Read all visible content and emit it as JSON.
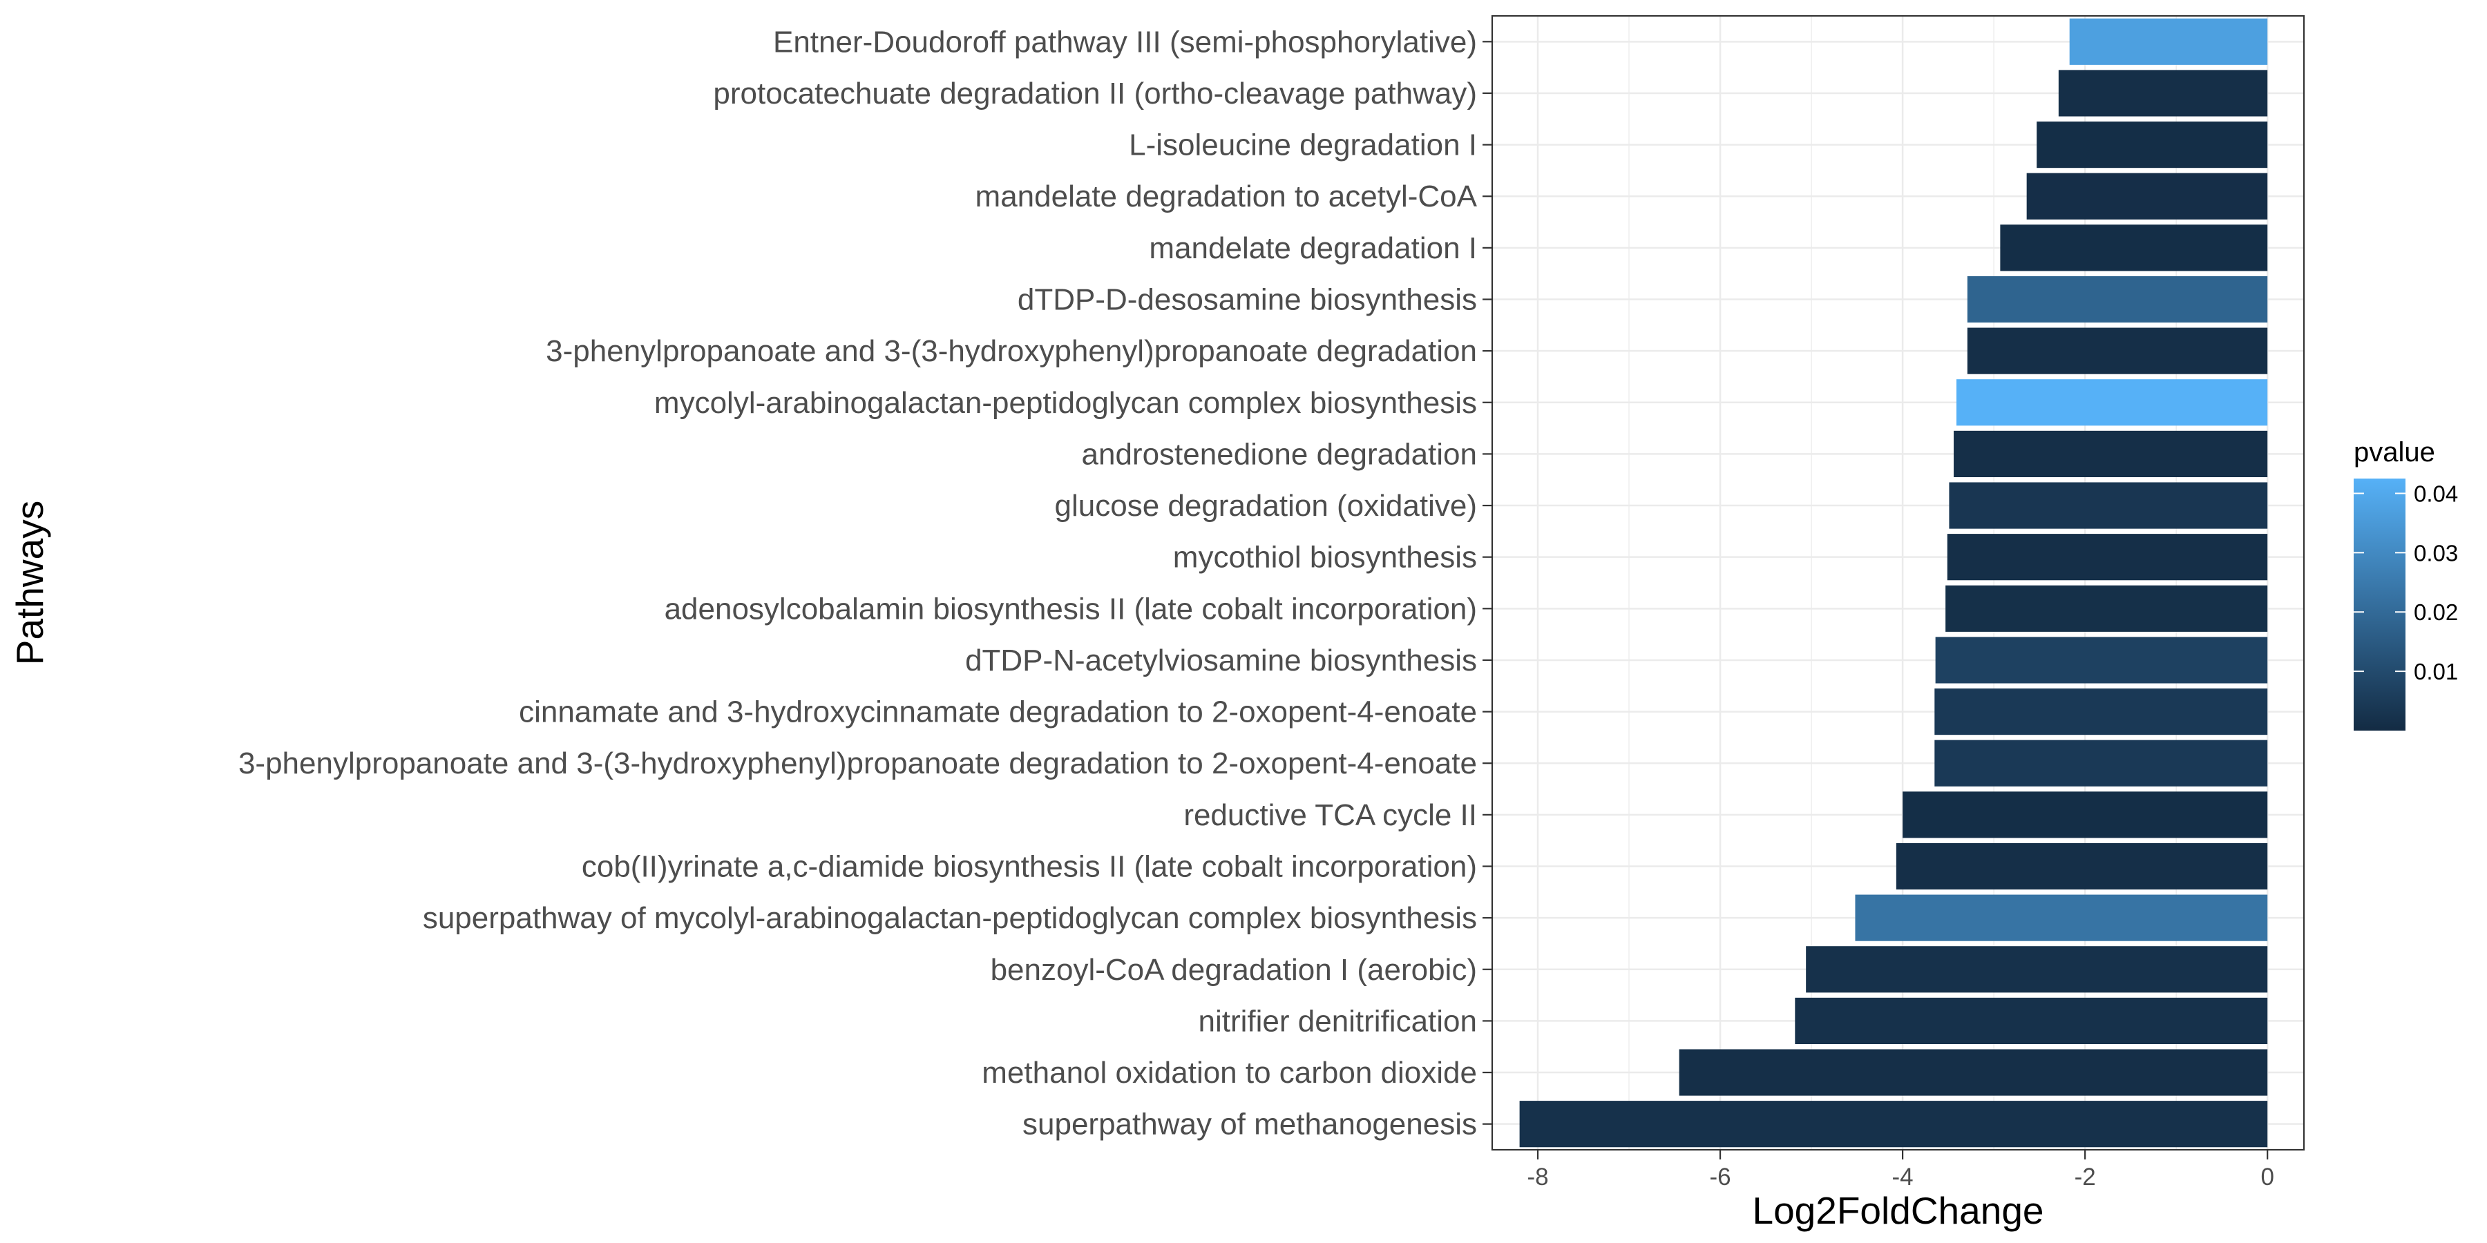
{
  "chart_data": {
    "type": "bar",
    "orientation": "horizontal",
    "categories": [
      "Entner-Doudoroff pathway III (semi-phosphorylative)",
      "protocatechuate degradation II (ortho-cleavage pathway)",
      "L-isoleucine degradation I",
      "mandelate degradation to acetyl-CoA",
      "mandelate degradation I",
      "dTDP-D-desosamine biosynthesis",
      "3-phenylpropanoate and 3-(3-hydroxyphenyl)propanoate degradation",
      "mycolyl-arabinogalactan-peptidoglycan complex biosynthesis",
      "androstenedione degradation",
      "glucose degradation (oxidative)",
      "mycothiol biosynthesis",
      "adenosylcobalamin biosynthesis II (late cobalt incorporation)",
      "dTDP-N-acetylviosamine biosynthesis",
      "cinnamate and 3-hydroxycinnamate degradation to 2-oxopent-4-enoate",
      "3-phenylpropanoate and 3-(3-hydroxyphenyl)propanoate degradation to 2-oxopent-4-enoate",
      "reductive TCA cycle II",
      "cob(II)yrinate a,c-diamide biosynthesis II (late cobalt incorporation)",
      "superpathway of mycolyl-arabinogalactan-peptidoglycan complex biosynthesis",
      "benzoyl-CoA degradation I (aerobic)",
      "nitrifier denitrification",
      "methanol oxidation to carbon dioxide",
      "superpathway of methanogenesis"
    ],
    "values": [
      -2.17,
      -2.29,
      -2.53,
      -2.64,
      -2.93,
      -3.29,
      -3.29,
      -3.41,
      -3.44,
      -3.49,
      -3.51,
      -3.53,
      -3.64,
      -3.65,
      -3.65,
      -4.0,
      -4.07,
      -4.52,
      -5.06,
      -5.18,
      -6.45,
      -8.2
    ],
    "pvalues": [
      0.037,
      0.0012,
      0.0009,
      0.0011,
      0.0009,
      0.018,
      0.0012,
      0.045,
      0.0012,
      0.0035,
      0.0012,
      0.0015,
      0.007,
      0.0045,
      0.0045,
      0.0009,
      0.0012,
      0.023,
      0.0018,
      0.0018,
      0.0012,
      0.0018
    ],
    "xlabel": "Log2FoldChange",
    "ylabel": "Pathways",
    "xlim": [
      -8.5,
      0.4
    ],
    "xticks": [
      "-8",
      "-6",
      "-4",
      "-2",
      "0"
    ],
    "grid": true,
    "legend": {
      "title": "pvalue",
      "position": "right",
      "ticks": [
        "0.04",
        "0.03",
        "0.02",
        "0.01"
      ],
      "range": [
        0.0,
        0.0425
      ],
      "color_low": "#132B43",
      "color_high": "#56B1F7"
    }
  }
}
